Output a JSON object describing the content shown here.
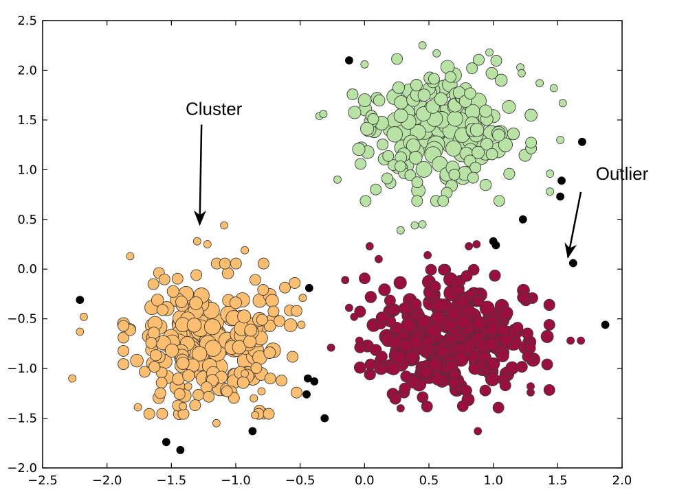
{
  "chart_data": {
    "type": "scatter",
    "title": "",
    "xlabel": "",
    "ylabel": "",
    "xlim": [
      -2.5,
      2.0
    ],
    "ylim": [
      -2.0,
      2.5
    ],
    "grid": false,
    "legend": "none",
    "x_ticks": [
      -2.5,
      -2.0,
      -1.5,
      -1.0,
      -0.5,
      0.0,
      0.5,
      1.0,
      1.5,
      2.0
    ],
    "x_tick_labels": [
      "−2.5",
      "−2.0",
      "−1.5",
      "−1.0",
      "−0.5",
      "0.0",
      "0.5",
      "1.0",
      "1.5",
      "2.0"
    ],
    "y_ticks": [
      -2.0,
      -1.5,
      -1.0,
      -0.5,
      0.0,
      0.5,
      1.0,
      1.5,
      2.0,
      2.5
    ],
    "y_tick_labels": [
      "−2.0",
      "−1.5",
      "−1.0",
      "−0.5",
      "0.0",
      "0.5",
      "1.0",
      "1.5",
      "2.0",
      "2.5"
    ],
    "clusters": [
      {
        "color": "#fdbf6f",
        "center": [
          -1.2,
          -0.7
        ],
        "spread": [
          0.32,
          0.36
        ],
        "count": 210,
        "fringe": [
          [
            -2.27,
            -1.1
          ],
          [
            -2.21,
            -0.63
          ],
          [
            -2.18,
            -0.48
          ],
          [
            -1.82,
            0.13
          ],
          [
            -1.37,
            -1.18
          ],
          [
            -1.41,
            -1.38
          ],
          [
            -1.76,
            -1.39
          ],
          [
            -1.15,
            -1.55
          ],
          [
            -0.93,
            -1.05
          ],
          [
            -0.86,
            -1.3
          ],
          [
            -0.85,
            -1.47
          ],
          [
            -0.8,
            -1.23
          ],
          [
            -0.48,
            -0.29
          ],
          [
            -0.93,
            0.19
          ],
          [
            -1.09,
            0.44
          ],
          [
            -1.3,
            0.28
          ],
          [
            -1.22,
            0.25
          ],
          [
            -0.49,
            -0.56
          ]
        ]
      },
      {
        "color": "#b8e3a4",
        "center": [
          0.6,
          1.4
        ],
        "spread": [
          0.33,
          0.34
        ],
        "count": 190,
        "fringe": [
          [
            -0.35,
            1.54
          ],
          [
            -0.32,
            1.56
          ],
          [
            -0.21,
            0.9
          ],
          [
            0.0,
            2.06
          ],
          [
            0.45,
            2.25
          ],
          [
            0.56,
            2.17
          ],
          [
            0.97,
            2.18
          ],
          [
            1.21,
            2.03
          ],
          [
            1.22,
            1.97
          ],
          [
            1.36,
            1.87
          ],
          [
            1.47,
            1.82
          ],
          [
            1.54,
            1.67
          ],
          [
            1.52,
            1.3
          ],
          [
            1.44,
            0.78
          ],
          [
            1.44,
            0.96
          ],
          [
            0.28,
            0.39
          ],
          [
            0.39,
            0.44
          ],
          [
            0.45,
            0.45
          ]
        ]
      },
      {
        "color": "#9a0f3e",
        "center": [
          0.7,
          -0.7
        ],
        "spread": [
          0.35,
          0.33
        ],
        "count": 230,
        "fringe": [
          [
            0.04,
            0.23
          ],
          [
            0.11,
            0.1
          ],
          [
            -0.15,
            -0.11
          ],
          [
            -0.12,
            -0.39
          ],
          [
            -0.04,
            -0.72
          ],
          [
            -0.08,
            -0.48
          ],
          [
            -0.26,
            -0.79
          ],
          [
            0.49,
            0.14
          ],
          [
            0.81,
            0.23
          ],
          [
            0.87,
            0.25
          ],
          [
            0.28,
            -1.4
          ],
          [
            0.88,
            -1.63
          ],
          [
            1.29,
            -1.24
          ],
          [
            1.29,
            -1.18
          ],
          [
            1.6,
            -0.72
          ],
          [
            1.68,
            -0.72
          ]
        ]
      }
    ],
    "outliers": {
      "color": "#000000",
      "points": [
        [
          -2.21,
          -0.31
        ],
        [
          -1.54,
          -1.74
        ],
        [
          -1.43,
          -1.82
        ],
        [
          -0.87,
          -1.63
        ],
        [
          -0.44,
          -1.1
        ],
        [
          -0.39,
          -1.13
        ],
        [
          -0.43,
          -0.19
        ],
        [
          -0.45,
          -1.26
        ],
        [
          -0.31,
          -1.5
        ],
        [
          -0.12,
          2.1
        ],
        [
          1.0,
          0.28
        ],
        [
          1.02,
          0.24
        ],
        [
          1.23,
          0.5
        ],
        [
          1.53,
          0.89
        ],
        [
          1.52,
          0.73
        ],
        [
          1.69,
          1.28
        ],
        [
          1.62,
          0.06
        ],
        [
          1.87,
          -0.56
        ]
      ]
    },
    "annotations": [
      {
        "text": "Cluster",
        "label_pos": [
          -1.17,
          1.55
        ],
        "points_to": [
          -1.28,
          0.45
        ]
      },
      {
        "text": "Outlier",
        "label_pos": [
          2.0,
          0.9
        ],
        "points_to": [
          1.58,
          0.12
        ]
      }
    ]
  }
}
